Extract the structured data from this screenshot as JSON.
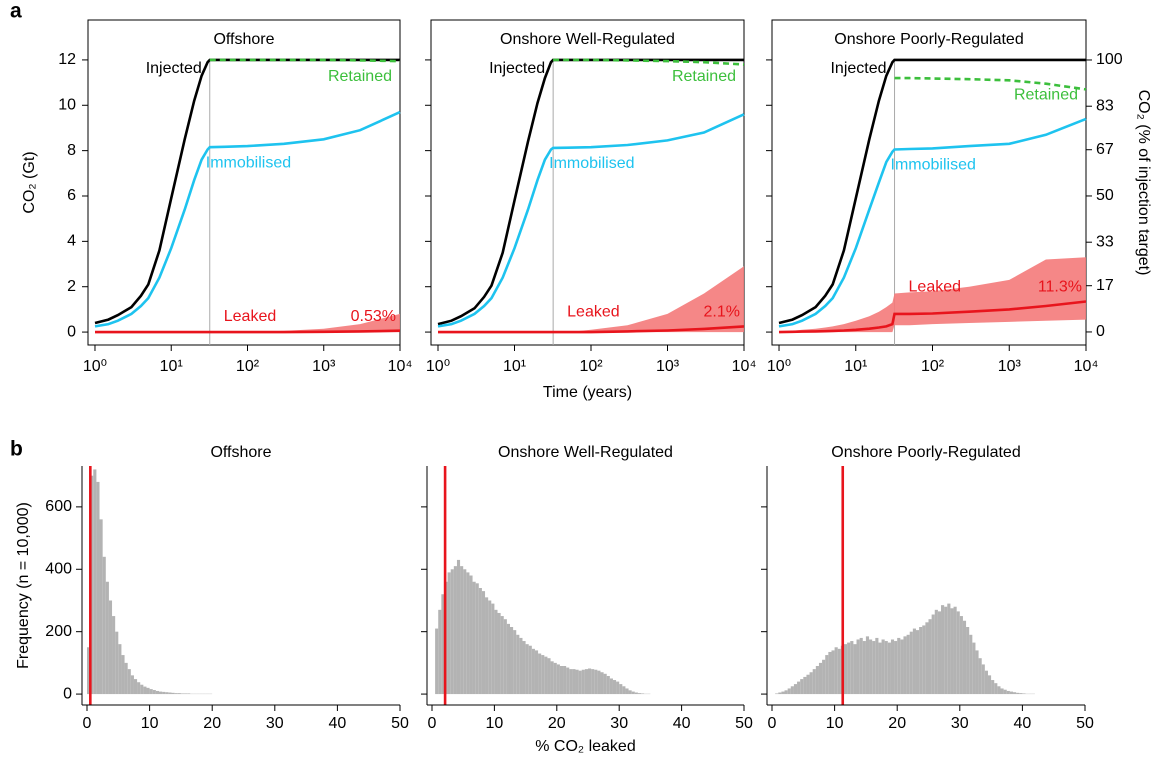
{
  "panel_a": "a",
  "panel_b": "b",
  "chart_data": [
    {
      "type": "line",
      "title": "Offshore",
      "ylabel": "CO₂ (Gt)",
      "log_x": true,
      "x": [
        1,
        1.5,
        2,
        3,
        4,
        5,
        7,
        10,
        15,
        20,
        25,
        30,
        32,
        50,
        100,
        300,
        1000,
        3000,
        10000
      ],
      "xlim": [
        0.81,
        10000
      ],
      "xticks": [
        {
          "value": 1,
          "label": "10⁰"
        },
        {
          "value": 10,
          "label": "10¹"
        },
        {
          "value": 100,
          "label": "10²"
        },
        {
          "value": 1000,
          "label": "10³"
        },
        {
          "value": 10000,
          "label": "10⁴"
        }
      ],
      "ylim": [
        -0.57,
        13.76
      ],
      "yticks": [
        0,
        2,
        4,
        6,
        8,
        10,
        12
      ],
      "injection_end_x": 32,
      "annotation": "0.53%",
      "series": [
        {
          "name": "Injected",
          "color": "#000000",
          "values": [
            0.4,
            0.55,
            0.75,
            1.1,
            1.6,
            2.1,
            3.6,
            5.9,
            8.5,
            10.2,
            11.3,
            11.9,
            12,
            12,
            12,
            12,
            12,
            12,
            12
          ]
        },
        {
          "name": "Retained",
          "color": "#3cbf3c",
          "dashed": true,
          "values": [
            null,
            null,
            null,
            null,
            null,
            null,
            null,
            null,
            null,
            null,
            null,
            null,
            12,
            12,
            12,
            12,
            12,
            11.98,
            11.95
          ]
        },
        {
          "name": "Immobilised",
          "color": "#1ec3ef",
          "values": [
            0.25,
            0.35,
            0.5,
            0.8,
            1.15,
            1.5,
            2.4,
            3.7,
            5.4,
            6.7,
            7.6,
            8.05,
            8.15,
            8.17,
            8.2,
            8.3,
            8.5,
            8.9,
            9.7
          ]
        },
        {
          "name": "Leaked",
          "color": "#e8141c",
          "band_color": "#f47a7a",
          "values": [
            0,
            0,
            0,
            0,
            0,
            0,
            0,
            0,
            0,
            0,
            0,
            0,
            0,
            0,
            0,
            0,
            0.01,
            0.03,
            0.06
          ],
          "band_low": [
            0,
            0,
            0,
            0,
            0,
            0,
            0,
            0,
            0,
            0,
            0,
            0,
            0,
            0,
            0,
            0,
            0,
            0,
            0
          ],
          "band_high": [
            0,
            0,
            0,
            0,
            0,
            0,
            0,
            0,
            0,
            0,
            0,
            0,
            0,
            0,
            0.02,
            0.05,
            0.15,
            0.35,
            0.8
          ]
        }
      ]
    },
    {
      "type": "line",
      "title": "Onshore Well-Regulated",
      "xlabel": "Time (years)",
      "log_x": true,
      "y_tick_labels": false,
      "x": [
        1,
        1.5,
        2,
        3,
        4,
        5,
        7,
        10,
        15,
        20,
        25,
        30,
        32,
        50,
        100,
        300,
        1000,
        3000,
        10000
      ],
      "xlim": [
        0.81,
        10000
      ],
      "xticks": [
        {
          "value": 1,
          "label": "10⁰"
        },
        {
          "value": 10,
          "label": "10¹"
        },
        {
          "value": 100,
          "label": "10²"
        },
        {
          "value": 1000,
          "label": "10³"
        },
        {
          "value": 10000,
          "label": "10⁴"
        }
      ],
      "ylim": [
        -0.57,
        13.76
      ],
      "yticks": [
        0,
        2,
        4,
        6,
        8,
        10,
        12
      ],
      "injection_end_x": 32,
      "annotation": "2.1%",
      "series": [
        {
          "name": "Injected",
          "color": "#000000",
          "values": [
            0.35,
            0.5,
            0.7,
            1.05,
            1.55,
            2.05,
            3.5,
            5.8,
            8.4,
            10.1,
            11.2,
            11.9,
            12,
            12,
            12,
            12,
            12,
            12,
            12
          ]
        },
        {
          "name": "Retained",
          "color": "#3cbf3c",
          "dashed": true,
          "values": [
            null,
            null,
            null,
            null,
            null,
            null,
            null,
            null,
            null,
            null,
            null,
            null,
            12,
            12,
            12,
            11.98,
            11.95,
            11.9,
            11.8
          ]
        },
        {
          "name": "Immobilised",
          "color": "#1ec3ef",
          "values": [
            0.25,
            0.35,
            0.5,
            0.8,
            1.15,
            1.5,
            2.4,
            3.7,
            5.4,
            6.7,
            7.6,
            8.05,
            8.12,
            8.13,
            8.15,
            8.25,
            8.45,
            8.8,
            9.6
          ]
        },
        {
          "name": "Leaked",
          "color": "#e8141c",
          "band_color": "#f47a7a",
          "values": [
            0,
            0,
            0,
            0,
            0,
            0,
            0,
            0,
            0,
            0,
            0,
            0,
            0,
            0,
            0,
            0.03,
            0.07,
            0.14,
            0.25
          ],
          "band_low": [
            0,
            0,
            0,
            0,
            0,
            0,
            0,
            0,
            0,
            0,
            0,
            0,
            0,
            0,
            0,
            0,
            0,
            0,
            0
          ],
          "band_high": [
            0,
            0,
            0,
            0,
            0,
            0,
            0,
            0,
            0,
            0,
            0,
            0,
            0,
            0,
            0.1,
            0.3,
            0.8,
            1.7,
            2.9
          ]
        }
      ]
    },
    {
      "type": "line",
      "title": "Onshore Poorly-Regulated",
      "y2label": "CO₂ (% of injection target)",
      "log_x": true,
      "y_tick_labels": false,
      "x": [
        1,
        1.5,
        2,
        3,
        4,
        5,
        7,
        10,
        15,
        20,
        25,
        30,
        32,
        50,
        100,
        300,
        1000,
        3000,
        10000
      ],
      "xlim": [
        0.81,
        10000
      ],
      "xticks": [
        {
          "value": 1,
          "label": "10⁰"
        },
        {
          "value": 10,
          "label": "10¹"
        },
        {
          "value": 100,
          "label": "10²"
        },
        {
          "value": 1000,
          "label": "10³"
        },
        {
          "value": 10000,
          "label": "10⁴"
        }
      ],
      "ylim": [
        -0.57,
        13.76
      ],
      "yticks": [
        0,
        2,
        4,
        6,
        8,
        10,
        12
      ],
      "y2lim": [
        -4.8,
        114.7
      ],
      "y2ticks": [
        0,
        17,
        33,
        50,
        67,
        83,
        100
      ],
      "injection_end_x": 32,
      "annotation": "11.3%",
      "series": [
        {
          "name": "Injected",
          "color": "#000000",
          "values": [
            0.4,
            0.55,
            0.75,
            1.1,
            1.6,
            2.1,
            3.6,
            5.9,
            8.5,
            10.2,
            11.3,
            11.9,
            12,
            12,
            12,
            12,
            12,
            12,
            12
          ]
        },
        {
          "name": "Retained",
          "color": "#3cbf3c",
          "dashed": true,
          "values": [
            null,
            null,
            null,
            null,
            null,
            null,
            null,
            null,
            null,
            null,
            null,
            null,
            11.2,
            11.2,
            11.18,
            11.15,
            11.1,
            10.95,
            10.7
          ]
        },
        {
          "name": "Immobilised",
          "color": "#1ec3ef",
          "values": [
            0.25,
            0.35,
            0.5,
            0.8,
            1.15,
            1.5,
            2.4,
            3.7,
            5.4,
            6.6,
            7.5,
            7.95,
            8.05,
            8.07,
            8.1,
            8.2,
            8.3,
            8.7,
            9.4
          ]
        },
        {
          "name": "Leaked",
          "color": "#e8141c",
          "band_color": "#f47a7a",
          "values": [
            0,
            0.01,
            0.02,
            0.03,
            0.04,
            0.05,
            0.07,
            0.1,
            0.15,
            0.2,
            0.25,
            0.35,
            0.8,
            0.8,
            0.82,
            0.9,
            1.0,
            1.15,
            1.35
          ],
          "band_low": [
            0,
            0,
            0,
            0,
            0,
            0,
            0,
            0,
            0,
            0,
            0,
            0,
            0.3,
            0.3,
            0.35,
            0.4,
            0.45,
            0.5,
            0.55
          ],
          "band_high": [
            0,
            0.05,
            0.1,
            0.15,
            0.2,
            0.25,
            0.35,
            0.5,
            0.7,
            0.9,
            1.1,
            1.3,
            1.7,
            1.75,
            1.8,
            2.0,
            2.3,
            3.2,
            3.3
          ]
        }
      ]
    },
    {
      "type": "histogram",
      "title": "Offshore",
      "ylabel": "Frequency (n = 10,000)",
      "color": "#b3b3b3",
      "marker_value": 0.53,
      "marker_color": "#e8141c",
      "xlim": [
        -0.8,
        50
      ],
      "xticks": [
        0,
        10,
        20,
        30,
        40,
        50
      ],
      "ylim": [
        -35,
        731
      ],
      "yticks": [
        0,
        200,
        400,
        600
      ],
      "bins": [
        0,
        0.5,
        1,
        1.5,
        2,
        2.5,
        3,
        3.5,
        4,
        4.5,
        5,
        5.5,
        6,
        6.5,
        7,
        7.5,
        8,
        8.5,
        9,
        9.5,
        10,
        10.5,
        11,
        11.5,
        12,
        12.5,
        13,
        13.5,
        14,
        14.5,
        15,
        15.5,
        16,
        16.5,
        17,
        17.5,
        18,
        18.5,
        19,
        19.5,
        20
      ],
      "values": [
        150,
        700,
        720,
        680,
        560,
        440,
        360,
        300,
        250,
        200,
        160,
        125,
        100,
        80,
        60,
        48,
        38,
        30,
        24,
        20,
        16,
        13,
        10,
        8,
        7,
        6,
        5,
        4,
        3,
        3,
        2,
        2,
        2,
        1,
        1,
        1,
        1,
        1,
        1,
        1
      ]
    },
    {
      "type": "histogram",
      "title": "Onshore Well-Regulated",
      "xlabel": "% CO₂ leaked",
      "y_tick_labels": false,
      "color": "#b3b3b3",
      "marker_value": 2.1,
      "marker_color": "#e8141c",
      "xlim": [
        -0.8,
        50
      ],
      "xticks": [
        0,
        10,
        20,
        30,
        40,
        50
      ],
      "ylim": [
        -35,
        731
      ],
      "yticks": [
        0,
        200,
        400,
        600
      ],
      "bins": [
        0,
        0.5,
        1,
        1.5,
        2,
        2.5,
        3,
        3.5,
        4,
        4.5,
        5,
        5.5,
        6,
        6.5,
        7,
        7.5,
        8,
        8.5,
        9,
        9.5,
        10,
        10.5,
        11,
        11.5,
        12,
        12.5,
        13,
        13.5,
        14,
        14.5,
        15,
        15.5,
        16,
        16.5,
        17,
        17.5,
        18,
        18.5,
        19,
        19.5,
        20,
        20.5,
        21,
        21.5,
        22,
        22.5,
        23,
        23.5,
        24,
        24.5,
        25,
        25.5,
        26,
        26.5,
        27,
        27.5,
        28,
        28.5,
        29,
        29.5,
        30,
        30.5,
        31,
        31.5,
        32,
        32.5,
        33,
        33.5,
        34,
        34.5,
        35
      ],
      "values": [
        0,
        210,
        270,
        320,
        360,
        390,
        400,
        410,
        430,
        410,
        400,
        390,
        380,
        360,
        355,
        340,
        330,
        310,
        300,
        290,
        270,
        260,
        250,
        240,
        225,
        215,
        205,
        190,
        180,
        170,
        160,
        155,
        145,
        140,
        130,
        125,
        120,
        115,
        105,
        100,
        95,
        90,
        90,
        85,
        80,
        80,
        78,
        75,
        78,
        80,
        82,
        80,
        78,
        75,
        70,
        65,
        58,
        50,
        45,
        40,
        32,
        25,
        18,
        12,
        8,
        5,
        3,
        2,
        1,
        1
      ]
    },
    {
      "type": "histogram",
      "title": "Onshore Poorly-Regulated",
      "y_tick_labels": false,
      "color": "#b3b3b3",
      "marker_value": 11.3,
      "marker_color": "#e8141c",
      "xlim": [
        -0.8,
        50
      ],
      "xticks": [
        0,
        10,
        20,
        30,
        40,
        50
      ],
      "ylim": [
        -35,
        731
      ],
      "yticks": [
        0,
        200,
        400,
        600
      ],
      "bins": [
        0,
        0.5,
        1,
        1.5,
        2,
        2.5,
        3,
        3.5,
        4,
        4.5,
        5,
        5.5,
        6,
        6.5,
        7,
        7.5,
        8,
        8.5,
        9,
        9.5,
        10,
        10.5,
        11,
        11.5,
        12,
        12.5,
        13,
        13.5,
        14,
        14.5,
        15,
        15.5,
        16,
        16.5,
        17,
        17.5,
        18,
        18.5,
        19,
        19.5,
        20,
        20.5,
        21,
        21.5,
        22,
        22.5,
        23,
        23.5,
        24,
        24.5,
        25,
        25.5,
        26,
        26.5,
        27,
        27.5,
        28,
        28.5,
        29,
        29.5,
        30,
        30.5,
        31,
        31.5,
        32,
        32.5,
        33,
        33.5,
        34,
        34.5,
        35,
        35.5,
        36,
        36.5,
        37,
        37.5,
        38,
        38.5,
        39,
        39.5,
        40,
        40.5,
        41,
        41.5,
        42
      ],
      "values": [
        0,
        2,
        5,
        8,
        12,
        18,
        25,
        32,
        40,
        48,
        55,
        62,
        70,
        80,
        90,
        100,
        110,
        125,
        135,
        140,
        150,
        145,
        155,
        160,
        165,
        170,
        160,
        175,
        180,
        170,
        185,
        175,
        170,
        180,
        165,
        175,
        170,
        165,
        175,
        170,
        180,
        175,
        185,
        190,
        200,
        210,
        205,
        215,
        220,
        230,
        240,
        255,
        270,
        265,
        285,
        280,
        290,
        275,
        280,
        265,
        250,
        235,
        215,
        190,
        165,
        140,
        115,
        95,
        75,
        60,
        45,
        35,
        25,
        18,
        14,
        10,
        8,
        6,
        4,
        3,
        2,
        1,
        1,
        1
      ]
    }
  ]
}
